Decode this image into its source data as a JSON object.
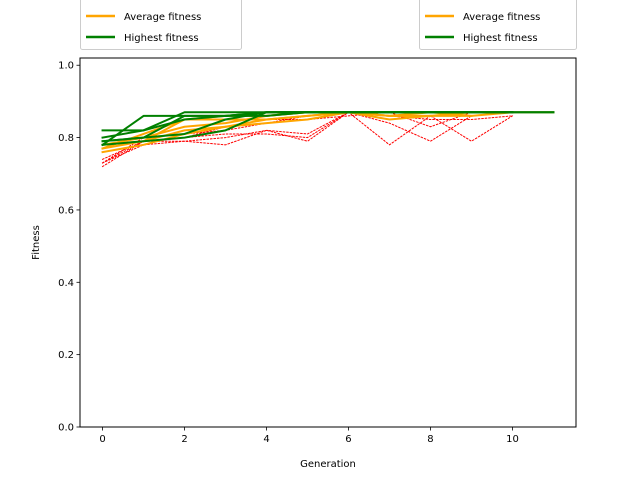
{
  "chart_data": {
    "type": "line",
    "xlabel": "Generation",
    "ylabel": "Fitness",
    "xlim": [
      -0.55,
      11.55
    ],
    "ylim": [
      0.0,
      1.02
    ],
    "x_ticks": [
      0,
      2,
      4,
      6,
      8,
      10
    ],
    "y_ticks": [
      0.0,
      0.2,
      0.4,
      0.6,
      0.8,
      1.0
    ],
    "y_tick_labels": [
      "0.0",
      "0.2",
      "0.4",
      "0.6",
      "0.8",
      "1.0"
    ],
    "grid": false,
    "colors": {
      "average": "#FFA500",
      "highest": "#008000",
      "population": "#FF0000"
    },
    "legends": [
      {
        "placement": "top-left-outside",
        "entries": [
          {
            "label": "Average fitness",
            "color": "#FFA500"
          },
          {
            "label": "Highest fitness",
            "color": "#008000"
          }
        ]
      },
      {
        "placement": "top-right-outside",
        "entries": [
          {
            "label": "Average fitness",
            "color": "#FFA500"
          },
          {
            "label": "Highest fitness",
            "color": "#008000"
          }
        ]
      }
    ],
    "series": [
      {
        "kind": "population",
        "x": [
          0,
          1,
          2,
          3,
          4,
          5,
          6,
          7,
          8
        ],
        "y": [
          0.72,
          0.79,
          0.79,
          0.78,
          0.82,
          0.79,
          0.87,
          0.78,
          0.86
        ]
      },
      {
        "kind": "population",
        "x": [
          0,
          1,
          2,
          3,
          4,
          5,
          6,
          7,
          8,
          9
        ],
        "y": [
          0.73,
          0.79,
          0.8,
          0.81,
          0.81,
          0.8,
          0.87,
          0.84,
          0.79,
          0.86
        ]
      },
      {
        "kind": "population",
        "x": [
          0,
          1,
          2,
          3,
          4,
          5,
          6,
          7,
          8,
          9,
          10
        ],
        "y": [
          0.73,
          0.78,
          0.79,
          0.8,
          0.82,
          0.81,
          0.87,
          0.85,
          0.86,
          0.79,
          0.86
        ]
      },
      {
        "kind": "population",
        "x": [
          0,
          1,
          2,
          3,
          4,
          5,
          6,
          7,
          8,
          9,
          10
        ],
        "y": [
          0.73,
          0.8,
          0.81,
          0.82,
          0.84,
          0.86,
          0.87,
          0.86,
          0.85,
          0.85,
          0.86
        ]
      },
      {
        "kind": "population",
        "x": [
          0,
          1,
          2,
          3,
          4,
          5,
          6,
          7,
          8,
          9
        ],
        "y": [
          0.74,
          0.79,
          0.8,
          0.83,
          0.85,
          0.85,
          0.86,
          0.87,
          0.83,
          0.87
        ]
      },
      {
        "kind": "average",
        "x": [
          0,
          1,
          2,
          3,
          4,
          5,
          6,
          7,
          8,
          9
        ],
        "y": [
          0.76,
          0.78,
          0.81,
          0.83,
          0.84,
          0.85,
          0.87,
          0.86,
          0.86,
          0.86
        ]
      },
      {
        "kind": "average",
        "x": [
          0,
          1,
          2,
          3,
          4,
          5,
          6,
          7,
          8,
          9,
          10
        ],
        "y": [
          0.77,
          0.79,
          0.82,
          0.83,
          0.85,
          0.86,
          0.87,
          0.86,
          0.87,
          0.86,
          0.87
        ]
      },
      {
        "kind": "average",
        "x": [
          0,
          1,
          2,
          3,
          4,
          5,
          6,
          7,
          8
        ],
        "y": [
          0.78,
          0.79,
          0.85,
          0.85,
          0.85,
          0.86,
          0.87,
          0.85,
          0.86
        ]
      },
      {
        "kind": "average",
        "x": [
          0,
          1,
          2,
          3,
          4,
          5,
          6,
          7,
          8,
          9,
          10
        ],
        "y": [
          0.78,
          0.8,
          0.83,
          0.84,
          0.86,
          0.87,
          0.87,
          0.86,
          0.86,
          0.87,
          0.87
        ]
      },
      {
        "kind": "average",
        "x": [
          0,
          1,
          2,
          3,
          4,
          5,
          6,
          7,
          8,
          9,
          10,
          11
        ],
        "y": [
          0.77,
          0.81,
          0.85,
          0.86,
          0.86,
          0.87,
          0.87,
          0.87,
          0.87,
          0.87,
          0.87,
          0.87
        ]
      },
      {
        "kind": "highest",
        "x": [
          0,
          1,
          2,
          3,
          4,
          5,
          6,
          7,
          8,
          9,
          10,
          11
        ],
        "y": [
          0.78,
          0.79,
          0.8,
          0.82,
          0.87,
          0.87,
          0.87,
          0.87,
          0.87,
          0.87,
          0.87,
          0.87
        ]
      },
      {
        "kind": "highest",
        "x": [
          0,
          1,
          2,
          3,
          4,
          5,
          6,
          7,
          8,
          9,
          10
        ],
        "y": [
          0.79,
          0.8,
          0.81,
          0.85,
          0.87,
          0.87,
          0.87,
          0.87,
          0.87,
          0.87,
          0.87
        ]
      },
      {
        "kind": "highest",
        "x": [
          0,
          1,
          2,
          3,
          4,
          5,
          6,
          7,
          8,
          9,
          10,
          11
        ],
        "y": [
          0.8,
          0.82,
          0.87,
          0.87,
          0.87,
          0.87,
          0.87,
          0.87,
          0.87,
          0.87,
          0.87,
          0.87
        ]
      },
      {
        "kind": "highest",
        "x": [
          0,
          1,
          2,
          3,
          4,
          5,
          6,
          7,
          8,
          9
        ],
        "y": [
          0.82,
          0.82,
          0.85,
          0.86,
          0.86,
          0.87,
          0.87,
          0.87,
          0.87,
          0.87
        ]
      },
      {
        "kind": "highest",
        "x": [
          0,
          1,
          2,
          3,
          4,
          5,
          6,
          7,
          8,
          9,
          10
        ],
        "y": [
          0.78,
          0.86,
          0.86,
          0.86,
          0.87,
          0.87,
          0.87,
          0.87,
          0.87,
          0.87,
          0.87
        ]
      },
      {
        "kind": "highest",
        "x": [
          0,
          1,
          2,
          3,
          4,
          5,
          6,
          7,
          8,
          9,
          10
        ],
        "y": [
          0.79,
          0.8,
          0.86,
          0.86,
          0.87,
          0.87,
          0.87,
          0.87,
          0.87,
          0.87,
          0.87
        ]
      }
    ]
  }
}
